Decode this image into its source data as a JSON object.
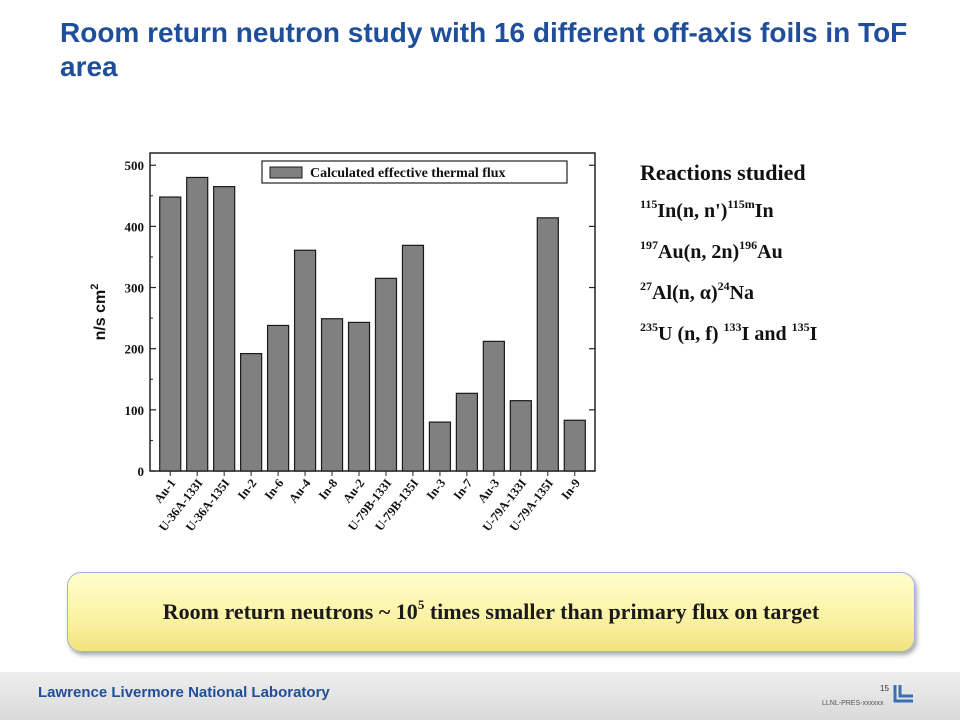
{
  "title": "Room return neutron study with 16 different off-axis foils in ToF area",
  "reactions": {
    "heading": "Reactions studied",
    "items": [
      [
        {
          "t": "115",
          "sup": true
        },
        {
          "t": "In(n, n')"
        },
        {
          "t": "115m",
          "sup": true
        },
        {
          "t": "In"
        }
      ],
      [
        {
          "t": "197",
          "sup": true
        },
        {
          "t": "Au(n, 2n)"
        },
        {
          "t": "196",
          "sup": true
        },
        {
          "t": "Au"
        }
      ],
      [
        {
          "t": "27",
          "sup": true
        },
        {
          "t": "Al(n, α)"
        },
        {
          "t": "24",
          "sup": true
        },
        {
          "t": "Na"
        }
      ],
      [
        {
          "t": "235",
          "sup": true
        },
        {
          "t": "U (n, f) "
        },
        {
          "t": "133",
          "sup": true
        },
        {
          "t": "I and "
        },
        {
          "t": "135",
          "sup": true
        },
        {
          "t": "I"
        }
      ]
    ]
  },
  "summary": {
    "before": "Room return neutrons ~ 10",
    "exponent": "5",
    "after": " times smaller than primary flux on target"
  },
  "footer": {
    "lab": "Lawrence Livermore National Laboratory",
    "page": "15",
    "release": "LLNL-PRES-xxxxxx"
  },
  "colors": {
    "title": "#1f4e9a",
    "footer_text": "#1f4e9a",
    "bar_fill": "#808080",
    "bar_stroke": "#1a1a1a"
  },
  "chart_data": {
    "type": "bar",
    "categories": [
      "Au-1",
      "U-36A-133I",
      "U-36A-135I",
      "In-2",
      "In-6",
      "Au-4",
      "In-8",
      "Au-2",
      "U-79B-133I",
      "U-79B-135I",
      "In-3",
      "In-7",
      "Au-3",
      "U-79A-133I",
      "U-79A-135I",
      "In-9"
    ],
    "series": [
      {
        "name": "Calculated effective thermal flux",
        "values": [
          448,
          480,
          465,
          192,
          238,
          361,
          249,
          243,
          315,
          369,
          80,
          127,
          212,
          115,
          414,
          83
        ]
      }
    ],
    "title": "",
    "xlabel": "",
    "ylabel": "n/s cm",
    "ylabel_sup": "2",
    "ylim": [
      0,
      520
    ],
    "yticks": [
      0,
      100,
      200,
      300,
      400,
      500
    ],
    "legend": "top-right",
    "grid": false
  }
}
